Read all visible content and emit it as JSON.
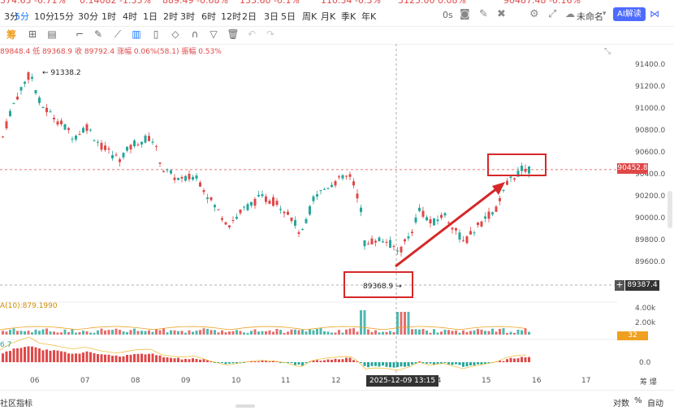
{
  "ticker": [
    {
      "text": "374.63 -0.71%",
      "color": "#e04848"
    },
    {
      "text": "0.14082 -1.35%",
      "color": "#e04848"
    },
    {
      "text": "889.49 -0.68%",
      "color": "#e04848"
    },
    {
      "text": "133.60 -0.1%",
      "color": "#e04848"
    },
    {
      "text": "110.34 -0.3%",
      "color": "#e04848"
    },
    {
      "text": "3125.00 0.08%",
      "color": "#e04848"
    },
    {
      "text": "90487.48 -0.16%",
      "color": "#e04848"
    }
  ],
  "intervals": [
    "3分",
    "5分",
    "10分",
    "15分",
    "30分",
    "1时",
    "4时",
    "1日",
    "2时",
    "3时",
    "6时",
    "12时",
    "2日",
    "3日",
    "5日",
    "周K",
    "月K",
    "季K",
    "年K"
  ],
  "active_interval": "5分",
  "header_right": {
    "seconds": "0s",
    "account": "未命名",
    "ai_button": "AI解读"
  },
  "toolbar_left_icon": "筹",
  "ohlc": "89848.4  低 89368.9  收 89792.4  涨幅 0.06%(58.1)  振幅 0.53%",
  "price_axis": [
    "91400.0",
    "91200.0",
    "91000.0",
    "90800.0",
    "90600.0",
    "90400.0",
    "90200.0",
    "90000.0",
    "89800.0",
    "89600.0"
  ],
  "price_ylim": [
    89450,
    91500
  ],
  "current_price": "90452.8",
  "low_marker": "89387.4",
  "high_annotation": "91338.2",
  "low_annotation": "89368.9",
  "volume_axis": [
    "4.00k",
    "2.00k"
  ],
  "volume_badge": "32",
  "ma_label": "A(10):879.1990",
  "macd_label": "6.7",
  "macd_zero": "0.0",
  "x_ticks": [
    "06",
    "07",
    "08",
    "09",
    "10",
    "11",
    "12",
    "14",
    "15",
    "16",
    "17"
  ],
  "crosshair_time": "2025-12-09 13:15",
  "corner_label": "筹 爆",
  "bottom": {
    "left": "社区指标",
    "right1": "对数",
    "right2": "%",
    "right3": "自动"
  },
  "colors": {
    "up": "#e04848",
    "down": "#26a69a",
    "accent": "#1677ff",
    "annot": "#d62828"
  }
}
